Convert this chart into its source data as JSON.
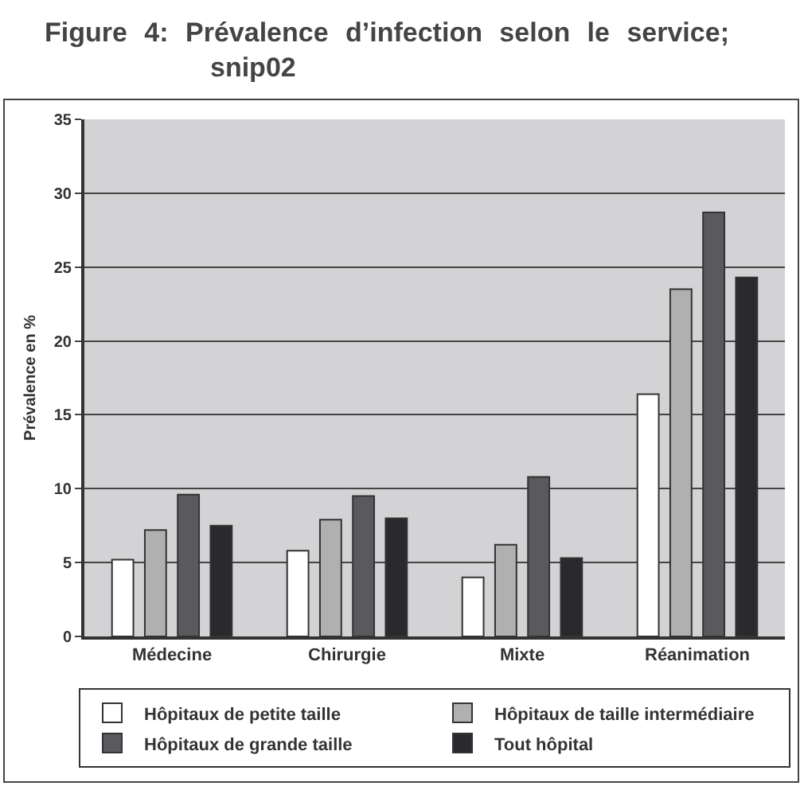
{
  "chart_data": {
    "type": "bar",
    "title": "Figure 4: Prévalence d’infection selon le service; snip02",
    "ylabel": "Prévalence en %",
    "categories": [
      "Médecine",
      "Chirurgie",
      "Mixte",
      "Réanimation"
    ],
    "series": [
      {
        "name": "Hôpitaux de petite taille",
        "color": "#ffffff",
        "values": [
          5.2,
          5.8,
          4.0,
          16.4
        ]
      },
      {
        "name": "Hôpitaux de taille intermédiaire",
        "color": "#b0b0b0",
        "values": [
          7.2,
          7.9,
          6.2,
          23.5
        ]
      },
      {
        "name": "Hôpitaux de grande taille",
        "color": "#5a5a5e",
        "values": [
          9.6,
          9.5,
          10.8,
          28.7
        ]
      },
      {
        "name": "Tout hôpital",
        "color": "#2a2a2e",
        "values": [
          7.5,
          8.0,
          5.3,
          24.3
        ]
      }
    ],
    "ylim": [
      0,
      35
    ],
    "yticks": [
      0,
      5,
      10,
      15,
      20,
      25,
      30,
      35
    ],
    "grid": "y",
    "legend": "bottom"
  }
}
